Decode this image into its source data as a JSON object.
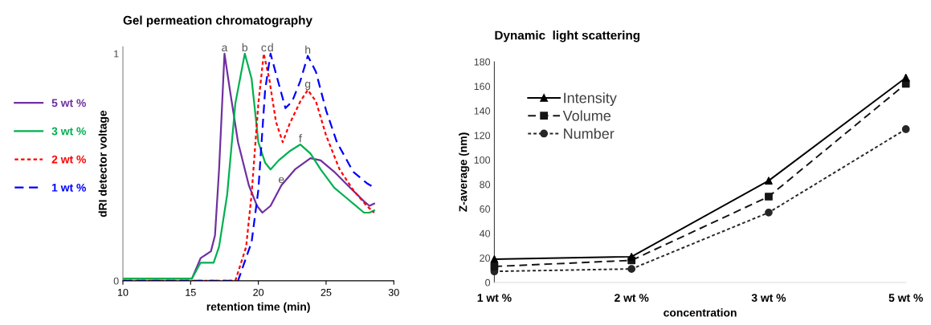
{
  "chart_data": [
    {
      "type": "line",
      "title": "Gel permeation chromatography",
      "xlabel": "retention time (min)",
      "ylabel": "dRI detector voltage",
      "xlim": [
        10,
        30
      ],
      "xticks": [
        10,
        15,
        20,
        25,
        30
      ],
      "ylim": [
        0,
        1.03
      ],
      "yticks": [
        0,
        1
      ],
      "grid": false,
      "legend": "left",
      "marker": "none",
      "series": [
        {
          "name": "5 wt %",
          "color": "#7030a0",
          "line_style": "solid",
          "x": [
            10,
            15.1,
            15.74,
            16.5,
            16.8,
            17.1,
            17.5,
            17.9,
            18.5,
            19.3,
            19.9,
            20.3,
            20.9,
            21.7,
            22.7,
            23.85,
            24.6,
            25.6,
            26.6,
            27.8,
            28.2,
            28.55
          ],
          "values": [
            0.01,
            0.01,
            0.1,
            0.13,
            0.2,
            0.49,
            1.0,
            0.84,
            0.61,
            0.42,
            0.33,
            0.3,
            0.33,
            0.42,
            0.49,
            0.54,
            0.53,
            0.48,
            0.42,
            0.35,
            0.33,
            0.34
          ]
        },
        {
          "name": "3 wt %",
          "color": "#00b050",
          "line_style": "solid",
          "x": [
            10,
            15.1,
            15.74,
            16.7,
            17.1,
            17.7,
            18.3,
            19.0,
            19.5,
            20.0,
            20.5,
            20.9,
            21.5,
            22.3,
            23.1,
            23.85,
            24.6,
            25.6,
            26.6,
            27.8,
            28.2,
            28.55
          ],
          "values": [
            0.01,
            0.01,
            0.08,
            0.08,
            0.15,
            0.38,
            0.78,
            1.0,
            0.89,
            0.61,
            0.52,
            0.49,
            0.53,
            0.57,
            0.6,
            0.56,
            0.49,
            0.41,
            0.36,
            0.3,
            0.3,
            0.31
          ]
        },
        {
          "name": "2 wt %",
          "color": "#ff0000",
          "line_style": "dotted",
          "x": [
            10,
            18.3,
            19.1,
            19.5,
            20.0,
            20.4,
            20.8,
            21.3,
            21.8,
            22.3,
            23.1,
            23.65,
            24.25,
            25.0,
            26.0,
            27.0,
            28.0,
            28.55
          ],
          "values": [
            0,
            0,
            0.15,
            0.38,
            0.78,
            1.0,
            0.89,
            0.7,
            0.61,
            0.69,
            0.79,
            0.84,
            0.79,
            0.64,
            0.49,
            0.4,
            0.33,
            0.3
          ]
        },
        {
          "name": "1 wt %",
          "color": "#0000ff",
          "line_style": "dashed",
          "x": [
            10,
            18.5,
            19.5,
            20.0,
            20.5,
            20.9,
            21.4,
            22.0,
            22.5,
            23.1,
            23.65,
            24.25,
            25.0,
            25.8,
            27.0,
            28.0,
            28.55
          ],
          "values": [
            0,
            0,
            0.17,
            0.4,
            0.84,
            1.0,
            0.89,
            0.76,
            0.79,
            0.88,
            0.99,
            0.92,
            0.75,
            0.61,
            0.48,
            0.43,
            0.41
          ]
        }
      ],
      "annotations": [
        {
          "text": "a",
          "x": 17.5,
          "y": 1.0
        },
        {
          "text": "b",
          "x": 19.0,
          "y": 1.0
        },
        {
          "text": "c",
          "x": 20.4,
          "y": 1.0
        },
        {
          "text": "d",
          "x": 20.9,
          "y": 1.0
        },
        {
          "text": "e",
          "x": 21.7,
          "y": 0.42
        },
        {
          "text": "f",
          "x": 23.1,
          "y": 0.6
        },
        {
          "text": "g",
          "x": 23.65,
          "y": 0.84
        },
        {
          "text": "h",
          "x": 23.65,
          "y": 0.99
        }
      ]
    },
    {
      "type": "line",
      "title": "Dynamic  light scattering",
      "xlabel": "concentration",
      "ylabel": "Z-average (nm)",
      "categories": [
        "1 wt %",
        "2 wt %",
        "3 wt %",
        "5 wt %"
      ],
      "ylim": [
        0,
        180
      ],
      "yticks": [
        0,
        20,
        40,
        60,
        80,
        100,
        120,
        140,
        160,
        180
      ],
      "grid": false,
      "legend": "top left",
      "series": [
        {
          "name": "Intensity",
          "color": "#000000",
          "marker": "triangle",
          "line_style": "solid",
          "values": [
            19,
            21,
            83,
            167
          ]
        },
        {
          "name": "Volume",
          "color": "#141414",
          "marker": "square",
          "line_style": "dashed",
          "values": [
            13,
            18,
            70,
            162
          ]
        },
        {
          "name": "Number",
          "color": "#262626",
          "marker": "circle",
          "line_style": "dotted",
          "values": [
            9,
            11,
            57,
            125
          ]
        }
      ]
    }
  ]
}
